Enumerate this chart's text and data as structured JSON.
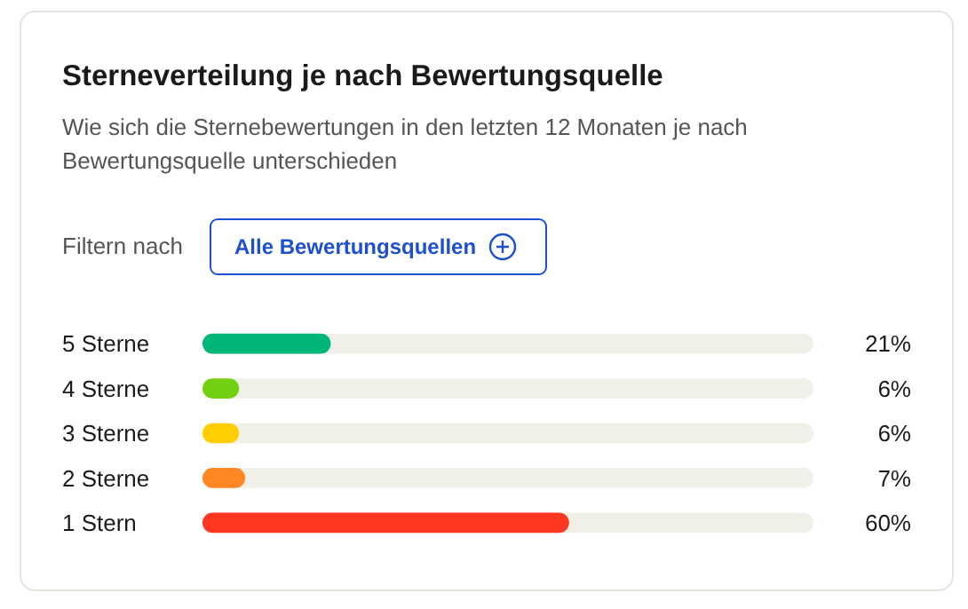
{
  "chart_data": {
    "type": "bar",
    "orientation": "horizontal",
    "title": "Sterneverteilung je nach Bewertungsquelle",
    "subtitle": "Wie sich die Sternebewertungen in den letzten 12 Monaten je nach Bewertungsquelle unterschieden",
    "annotations": [
      "Filtern nach",
      "Alle Bewertungsquellen"
    ],
    "categories": [
      "5 Sterne",
      "4 Sterne",
      "3 Sterne",
      "2 Sterne",
      "1 Stern"
    ],
    "values": [
      21,
      6,
      6,
      7,
      60
    ],
    "colors": [
      "#00b67a",
      "#73cf11",
      "#ffce00",
      "#ff8622",
      "#ff3722"
    ],
    "value_labels": [
      "21%",
      "6%",
      "6%",
      "7%",
      "60%"
    ],
    "xlim": [
      0,
      100
    ],
    "tick_labels": "y"
  }
}
